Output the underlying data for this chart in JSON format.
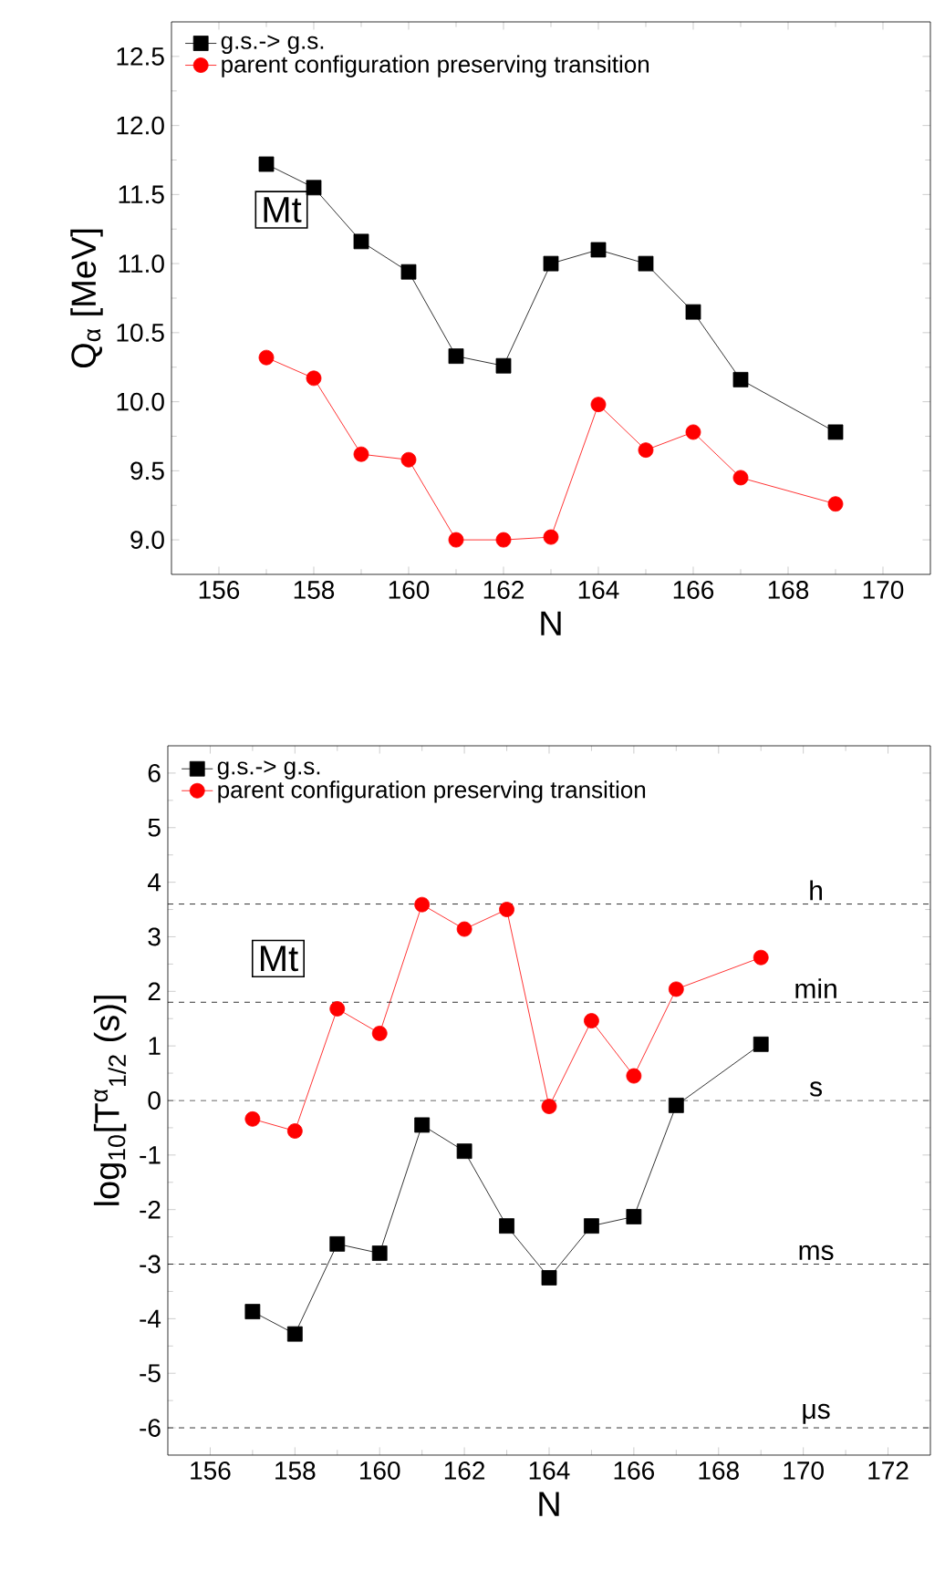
{
  "chart_data": [
    {
      "type": "line",
      "xlabel": "N",
      "ylabel": "Q$_{α}$ [MeV]",
      "annotations": [
        "Mt"
      ],
      "legend": "top left",
      "grid": false,
      "line_style": "solid",
      "x": [
        157,
        158,
        159,
        160,
        161,
        162,
        163,
        164,
        165,
        166,
        167,
        169
      ],
      "series": [
        {
          "name": "g.s.-> g.s.",
          "color": "#000000",
          "marker": "square",
          "values": [
            11.72,
            11.55,
            11.16,
            10.94,
            10.33,
            10.26,
            11.0,
            11.1,
            11.0,
            10.65,
            10.16,
            9.78
          ]
        },
        {
          "name": "parent configuration preserving transition",
          "color": "#ff0000",
          "marker": "circle",
          "values": [
            10.32,
            10.17,
            9.62,
            9.58,
            9.0,
            9.0,
            9.02,
            9.98,
            9.65,
            9.78,
            9.45,
            9.26
          ]
        }
      ],
      "xlim": [
        155,
        171
      ],
      "xticks": [
        156,
        158,
        160,
        162,
        164,
        166,
        168,
        170
      ],
      "ylim": [
        8.75,
        12.75
      ],
      "yticks": [
        {
          "value": 9,
          "label": "9.0"
        },
        {
          "value": 9.5,
          "label": "9.5"
        },
        {
          "value": 10,
          "label": "10.0"
        },
        {
          "value": 10.5,
          "label": "10.5"
        },
        {
          "value": 11,
          "label": "11.0"
        },
        {
          "value": 11.5,
          "label": "11.5"
        },
        {
          "value": 12,
          "label": "12.0"
        },
        {
          "value": 12.5,
          "label": "12.5"
        }
      ]
    },
    {
      "type": "line",
      "xlabel": "N",
      "ylabel": "log$_{10}$[T$^{α}$$_{1/2}$ (s)]",
      "annotations": [
        "Mt"
      ],
      "legend": "top left",
      "grid": false,
      "line_style": "solid",
      "x": [
        157,
        158,
        159,
        160,
        161,
        162,
        163,
        164,
        165,
        166,
        167,
        169
      ],
      "series": [
        {
          "name": "g.s.-> g.s.",
          "color": "#000000",
          "marker": "square",
          "values": [
            -3.87,
            -4.28,
            -2.63,
            -2.8,
            -0.45,
            -0.93,
            -2.3,
            -3.25,
            -2.3,
            -2.13,
            -0.09,
            1.03
          ]
        },
        {
          "name": "parent configuration preserving transition",
          "color": "#ff0000",
          "marker": "circle",
          "values": [
            -0.34,
            -0.56,
            1.68,
            1.23,
            3.59,
            3.14,
            3.5,
            -0.11,
            1.46,
            0.45,
            2.04,
            2.62
          ]
        }
      ],
      "ref_lines": [
        {
          "axis": "y",
          "value": 3.6,
          "label": "h",
          "color": "#000000",
          "line_style": "dashed"
        },
        {
          "axis": "y",
          "value": 1.8,
          "label": "min",
          "color": "#000000",
          "line_style": "dashed"
        },
        {
          "axis": "y",
          "value": 0,
          "label": "s",
          "color": "#000000",
          "line_style": "dashed"
        },
        {
          "axis": "y",
          "value": -3,
          "label": "ms",
          "color": "#000000",
          "line_style": "dashed"
        },
        {
          "axis": "y",
          "value": -6,
          "label": "μs",
          "color": "#000000",
          "line_style": "dashed"
        }
      ],
      "xlim": [
        155,
        173
      ],
      "xticks": [
        156,
        158,
        160,
        162,
        164,
        166,
        168,
        170,
        172
      ],
      "ylim": [
        -6.5,
        6.5
      ],
      "yticks": [
        -6,
        -5,
        -4,
        -3,
        -2,
        -1,
        0,
        1,
        2,
        3,
        4,
        5,
        6
      ]
    }
  ]
}
